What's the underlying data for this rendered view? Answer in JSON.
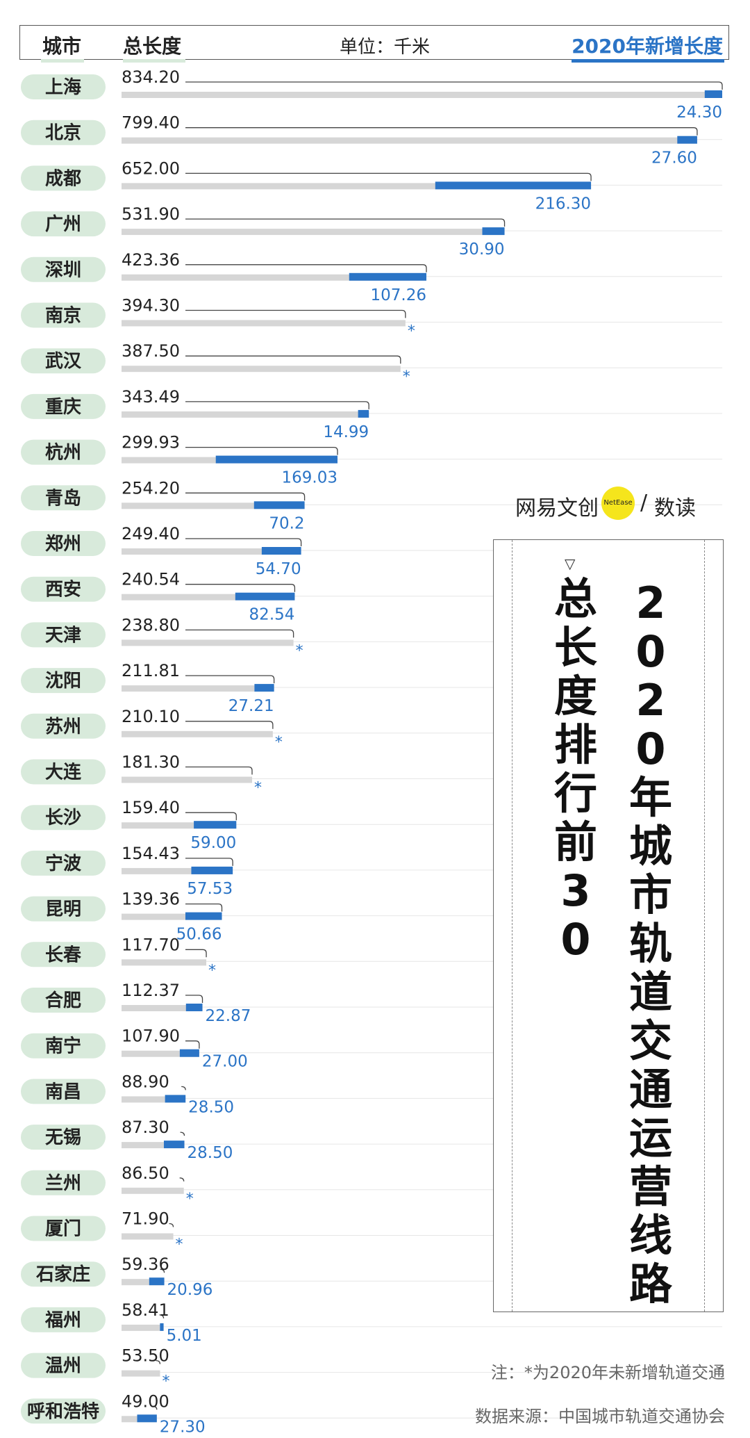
{
  "header": {
    "city_label": "城市",
    "total_label": "总长度",
    "unit_label": "单位：千米",
    "new_label": "2020年新增长度"
  },
  "title": {
    "line1": "总长度排行前30",
    "line2": "2020年城市轨道交通运营线路"
  },
  "brand": {
    "logo": "网易文创",
    "dot": "NetEase",
    "sep": "/",
    "read": "数读"
  },
  "note": "注：*为2020年未新增轨道交通",
  "source": "数据来源：中国城市轨道交通协会",
  "colors": {
    "accent": "#2b74c6",
    "bar_gray": "#d6d6d6",
    "city_pill": "#d8eadb"
  },
  "chart_data": {
    "type": "bar",
    "orientation": "horizontal",
    "categories": [
      "上海",
      "北京",
      "成都",
      "广州",
      "深圳",
      "南京",
      "武汉",
      "重庆",
      "杭州",
      "青岛",
      "郑州",
      "西安",
      "天津",
      "沈阳",
      "苏州",
      "大连",
      "长沙",
      "宁波",
      "昆明",
      "长春",
      "合肥",
      "南宁",
      "南昌",
      "无锡",
      "兰州",
      "厦门",
      "石家庄",
      "福州",
      "温州",
      "呼和浩特"
    ],
    "series": [
      {
        "name": "总长度",
        "values": [
          834.2,
          799.4,
          652.0,
          531.9,
          423.36,
          394.3,
          387.5,
          343.49,
          299.93,
          254.2,
          249.4,
          240.54,
          238.8,
          211.81,
          210.1,
          181.3,
          159.4,
          154.43,
          139.36,
          117.7,
          112.37,
          107.9,
          88.9,
          87.3,
          86.5,
          71.9,
          59.36,
          58.41,
          53.5,
          49.0
        ]
      },
      {
        "name": "2020年新增长度",
        "values": [
          24.3,
          27.6,
          216.3,
          30.9,
          107.26,
          null,
          null,
          14.99,
          169.03,
          70.2,
          54.7,
          82.54,
          null,
          27.21,
          null,
          null,
          59.0,
          57.53,
          50.66,
          null,
          22.87,
          27.0,
          28.5,
          28.5,
          null,
          null,
          20.96,
          5.01,
          null,
          27.3
        ]
      }
    ],
    "total_labels": [
      "834.20",
      "799.40",
      "652.00",
      "531.90",
      "423.36",
      "394.30",
      "387.50",
      "343.49",
      "299.93",
      "254.20",
      "249.40",
      "240.54",
      "238.80",
      "211.81",
      "210.10",
      "181.30",
      "159.40",
      "154.43",
      "139.36",
      "117.70",
      "112.37",
      "107.90",
      "88.90",
      "87.30",
      "86.50",
      "71.90",
      "59.36",
      "58.41",
      "53.50",
      "49.00"
    ],
    "new_labels": [
      "24.30",
      "27.60",
      "216.30",
      "30.90",
      "107.26",
      "*",
      "*",
      "14.99",
      "169.03",
      "70.2",
      "54.70",
      "82.54",
      "*",
      "27.21",
      "*",
      "*",
      "59.00",
      "57.53",
      "50.66",
      "*",
      "22.87",
      "27.00",
      "28.50",
      "28.50",
      "*",
      "*",
      "20.96",
      "5.01",
      "*",
      "27.30"
    ],
    "unit": "千米"
  }
}
